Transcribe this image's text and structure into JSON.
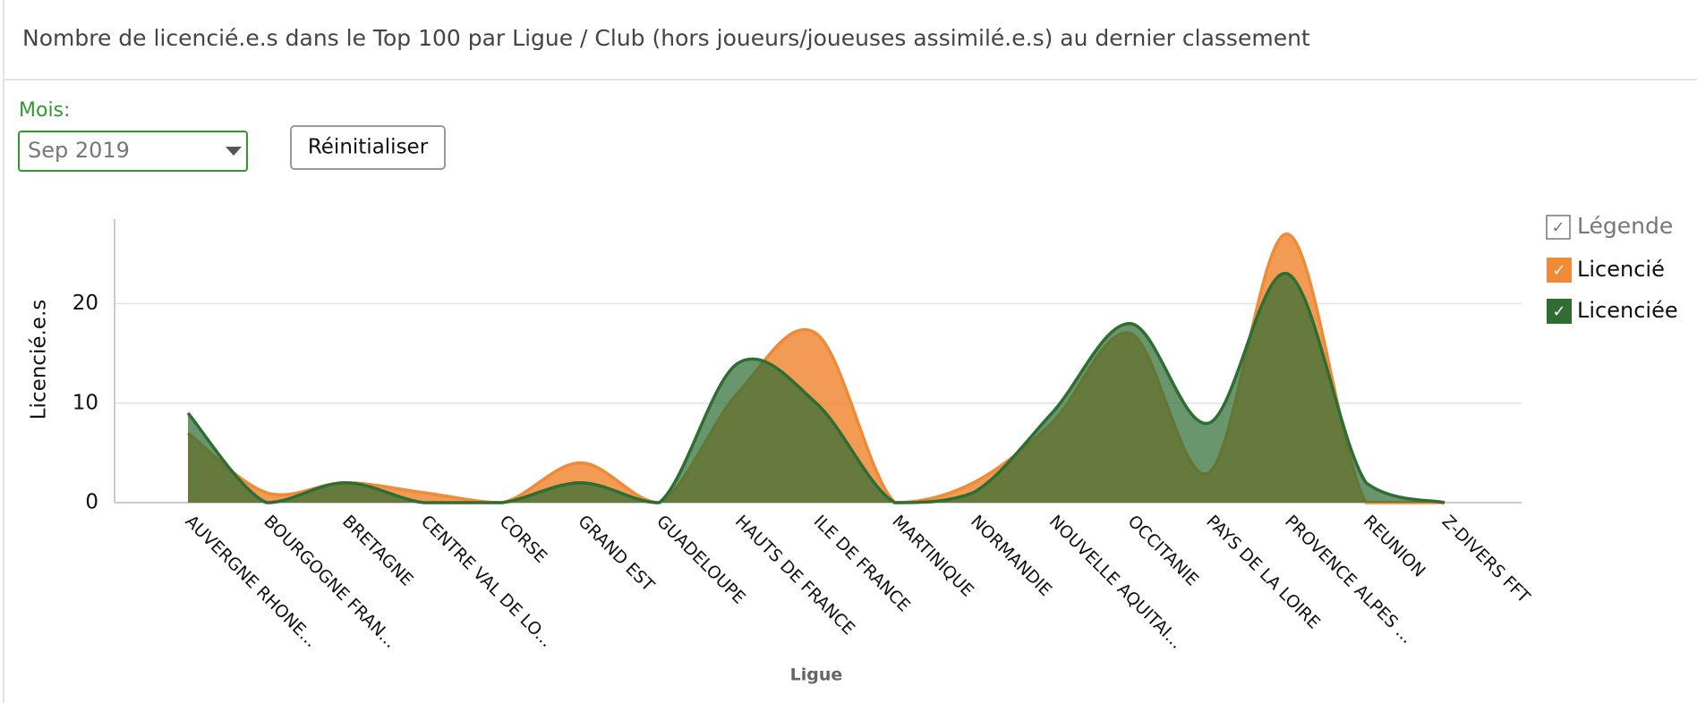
{
  "chart_data": {
    "type": "area",
    "title": "Nombre de licencié.e.s dans le Top 100 par Ligue / Club (hors joueurs/joueuses assimilé.e.s) au dernier classement",
    "filter_label": "Mois:",
    "filter_value": "Sep 2019",
    "reset_button": "Réinitialiser",
    "legend_title": "Légende",
    "y_label": "Licencié.e.s",
    "x_label": "Ligue",
    "categories": [
      "AUVERGNE RHONE...",
      "BOURGOGNE FRAN...",
      "BRETAGNE",
      "CENTRE VAL DE LO...",
      "CORSE",
      "GRAND EST",
      "GUADELOUPE",
      "HAUTS DE FRANCE",
      "ILE DE FRANCE",
      "MARTINIQUE",
      "NORMANDIE",
      "NOUVELLE AQUITAI...",
      "OCCITANIE",
      "PAYS DE LA LOIRE",
      "PROVENCE ALPES ...",
      "REUNION",
      "Z-DIVERS FFT"
    ],
    "series": [
      {
        "name": "Licencié",
        "color": "#ef8a36",
        "values": [
          7,
          1,
          2,
          1,
          0,
          4,
          0,
          11,
          17,
          0,
          2,
          8,
          17,
          3,
          27,
          0,
          0
        ]
      },
      {
        "name": "Licenciée",
        "color": "#2f6e33",
        "values": [
          9,
          0,
          2,
          0,
          0,
          2,
          0,
          14,
          10,
          0,
          1,
          9,
          18,
          8,
          23,
          2,
          0
        ]
      }
    ],
    "ylim": [
      0,
      28.5
    ],
    "yticks": [
      0,
      10,
      20
    ],
    "grid": true
  }
}
